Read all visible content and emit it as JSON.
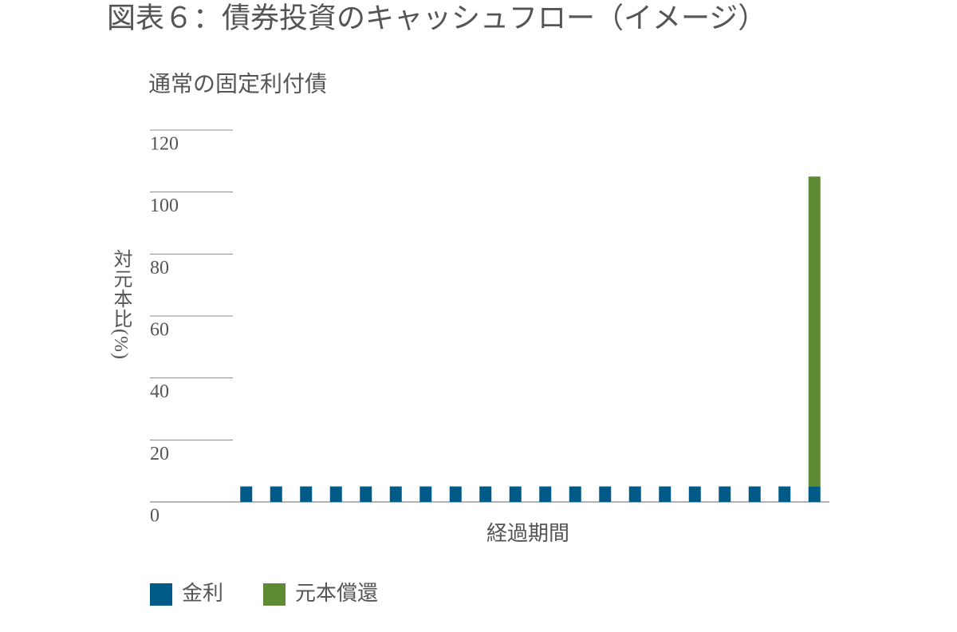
{
  "chart_data": {
    "type": "stacked_bar",
    "title": "図表６：債券投資のキャッシュフロー（イメージ）",
    "subtitle": "通常の固定利付債",
    "y_label": "対元本比(%)",
    "x_label": "経過期間",
    "categories": [
      null,
      null,
      null,
      null,
      null,
      null,
      null,
      null,
      null,
      null,
      null,
      null,
      null,
      null,
      null,
      null,
      null,
      null,
      null,
      null
    ],
    "series": [
      {
        "name": "金利",
        "color": "#005a87",
        "values": [
          5,
          5,
          5,
          5,
          5,
          5,
          5,
          5,
          5,
          5,
          5,
          5,
          5,
          5,
          5,
          5,
          5,
          5,
          5,
          5
        ]
      },
      {
        "name": "元本償還",
        "color": "#5e8a35",
        "values": [
          0,
          0,
          0,
          0,
          0,
          0,
          0,
          0,
          0,
          0,
          0,
          0,
          0,
          0,
          0,
          0,
          0,
          0,
          0,
          100
        ]
      }
    ],
    "ylim": [
      0,
      120
    ],
    "yticks": [
      0,
      20,
      40,
      60,
      80,
      100,
      120
    ],
    "grid": true
  }
}
